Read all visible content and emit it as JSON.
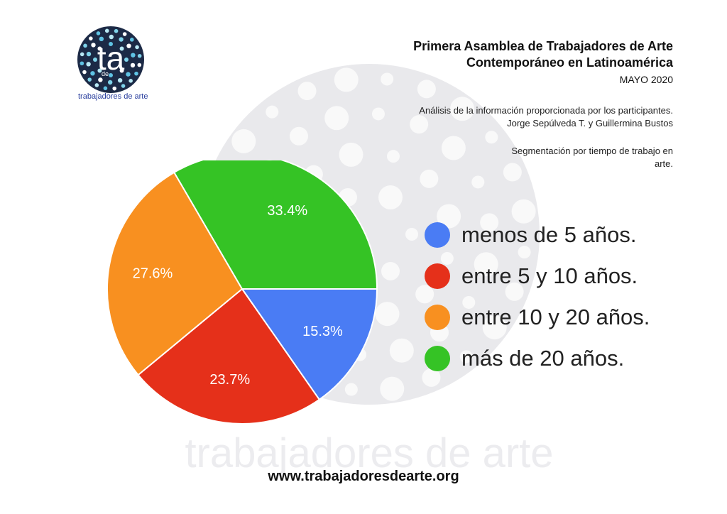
{
  "header": {
    "title_line1": "Primera Asamblea de Trabajadores de Arte",
    "title_line2": "Contemporáneo en Latinoamérica",
    "date": "MAYO 2020",
    "analysis_line1": "Análisis de la información proporcionada por los participantes.",
    "analysis_line2": "Jorge Sepúlveda T. y Guillermina Bustos",
    "segment_line1": "Segmentación por tiempo de trabajo en",
    "segment_line2": "arte."
  },
  "logo": {
    "letters": "ta",
    "small_text": "de",
    "caption": "trabajadores de arte"
  },
  "watermark_text": "trabajadores de arte",
  "footer": {
    "url": "www.trabajadoresdearte.org"
  },
  "colors": {
    "blue": "#4a7cf4",
    "red": "#e5301a",
    "orange": "#f89020",
    "green": "#35c325",
    "logo_bg": "#1c2a46",
    "watermark": "#e9e9ec"
  },
  "chart_data": {
    "type": "pie",
    "title": "",
    "series": [
      {
        "name": "menos de 5 años.",
        "value": 15.3,
        "label": "15.3%",
        "color": "#4a7cf4"
      },
      {
        "name": "entre 5 y 10 años.",
        "value": 23.7,
        "label": "23.7%",
        "color": "#e5301a"
      },
      {
        "name": "entre 10 y 20 años.",
        "value": 27.6,
        "label": "27.6%",
        "color": "#f89020"
      },
      {
        "name": "más de 20 años.",
        "value": 33.4,
        "label": "33.4%",
        "color": "#35c325"
      }
    ],
    "start": "3 o'clock",
    "direction": "clockwise",
    "legend_position": "right"
  }
}
